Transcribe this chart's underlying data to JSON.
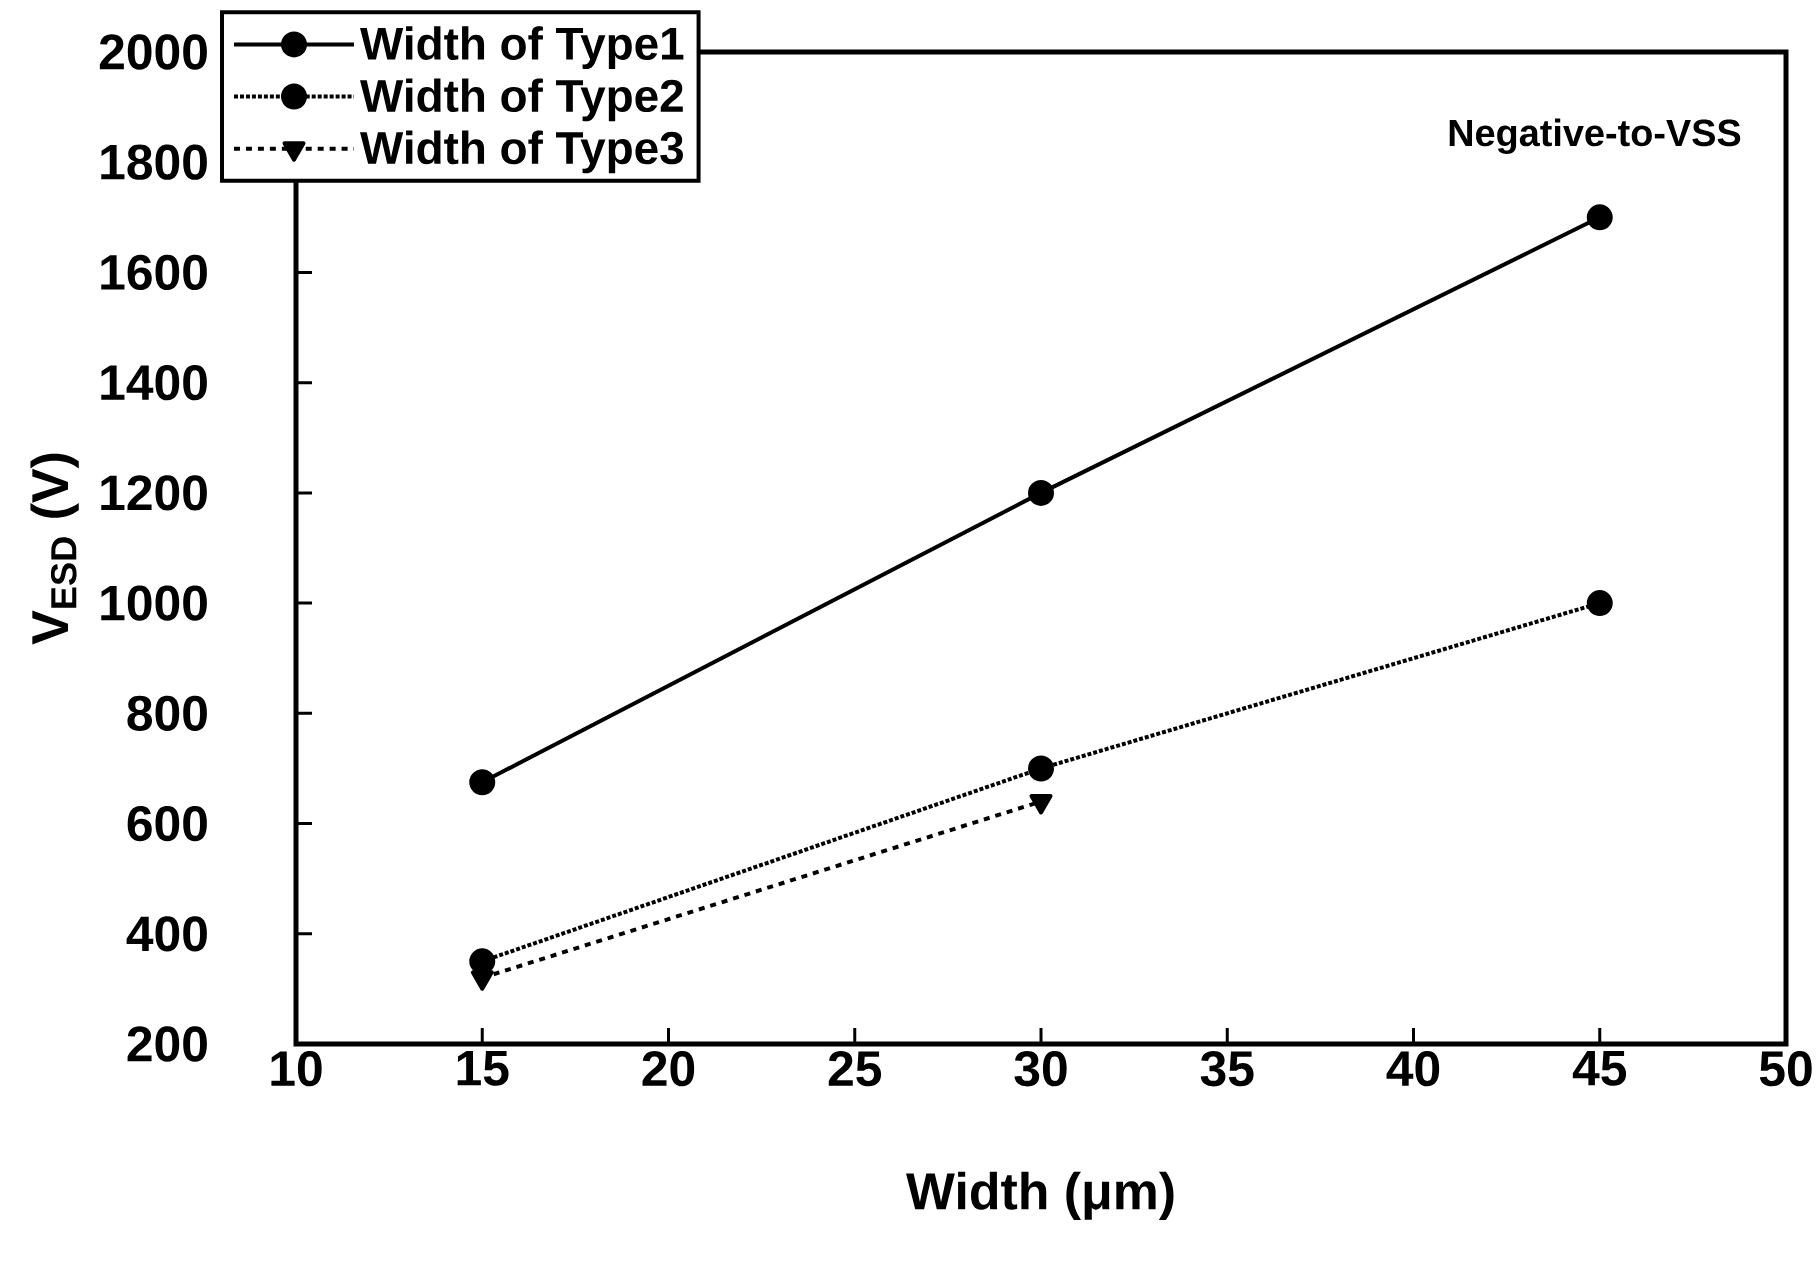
{
  "chart_data": {
    "type": "line",
    "xlabel": "Width (μm)",
    "ylabel": "V$_{ESD}$ (V)",
    "x": [
      15,
      30,
      45
    ],
    "series": [
      {
        "name": "Width of Type1",
        "color": "#000000",
        "values": [
          675,
          1200,
          1700
        ],
        "marker": "circle",
        "line_style": "solid"
      },
      {
        "name": "Width of Type2",
        "color": "#000000",
        "values": [
          350,
          700,
          1000
        ],
        "marker": "circle",
        "line_style": "dotted"
      },
      {
        "name": "Width of Type3",
        "color": "#000000",
        "values": [
          320,
          640,
          null
        ],
        "marker": "triangle",
        "line_style": "dashed"
      }
    ],
    "xlim": [
      10,
      50
    ],
    "xticks": [
      10,
      15,
      20,
      25,
      30,
      35,
      40,
      45,
      50
    ],
    "ylim": [
      200,
      2000
    ],
    "yticks": [
      200,
      400,
      600,
      800,
      1000,
      1200,
      1400,
      1600,
      1800,
      2000
    ],
    "legend": "top left",
    "grid": false,
    "annotations": [
      "Negative-to-VSS"
    ]
  }
}
